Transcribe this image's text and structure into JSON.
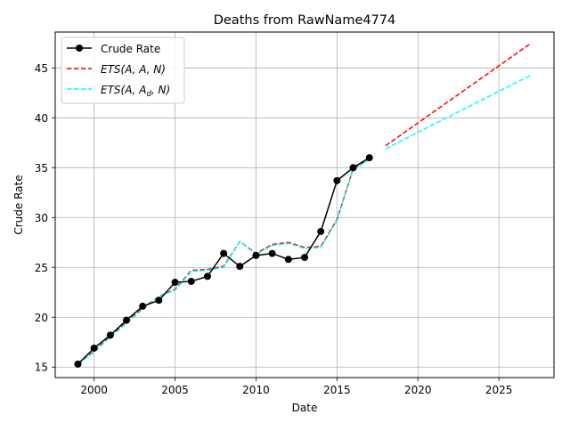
{
  "chart_data": {
    "type": "line",
    "title": "Deaths from RawName4774",
    "xlabel": "Date",
    "ylabel": "Crude Rate",
    "xlim": [
      1997.6,
      2028.4
    ],
    "ylim": [
      13.95,
      48.6
    ],
    "grid": true,
    "legend_position": "upper-left",
    "x_ticks": [
      2000,
      2005,
      2010,
      2015,
      2020,
      2025
    ],
    "y_ticks": [
      15,
      20,
      25,
      30,
      35,
      40,
      45
    ],
    "series": [
      {
        "name": "Crude Rate",
        "style": "solid-marker",
        "color": "#000000",
        "x": [
          1999,
          2000,
          2001,
          2002,
          2003,
          2004,
          2005,
          2006,
          2007,
          2008,
          2009,
          2010,
          2011,
          2012,
          2013,
          2014,
          2015,
          2016,
          2017
        ],
        "y": [
          15.3,
          16.9,
          18.2,
          19.7,
          21.1,
          21.7,
          23.5,
          23.6,
          24.1,
          26.4,
          25.1,
          26.2,
          26.4,
          25.8,
          26.0,
          28.6,
          33.7,
          35.0,
          36.0
        ]
      },
      {
        "name": "ETS(A,A,N)",
        "legend_label": {
          "prefix": "ETS(A, A, N)",
          "subscript": ""
        },
        "style": "dashed",
        "color": "#ff0000",
        "x": [
          1999,
          2000,
          2001,
          2002,
          2003,
          2004,
          2005,
          2006,
          2007,
          2008,
          2009,
          2010,
          2011,
          2012,
          2013,
          2014,
          2015,
          2016,
          2017
        ],
        "y": [
          15.3,
          16.6,
          18.1,
          19.5,
          20.9,
          22.1,
          22.8,
          24.7,
          24.8,
          25.1,
          27.6,
          26.4,
          27.3,
          27.5,
          27.0,
          27.1,
          29.8,
          34.9,
          35.9
        ]
      },
      {
        "name": "ETS(A,Ad,N)",
        "style": "dashed",
        "color": "#00ffff",
        "x": [
          1999,
          2000,
          2001,
          2002,
          2003,
          2004,
          2005,
          2006,
          2007,
          2008,
          2009,
          2010,
          2011,
          2012,
          2013,
          2014,
          2015,
          2016,
          2017
        ],
        "y": [
          15.3,
          16.5,
          18.0,
          19.4,
          20.8,
          22.1,
          22.7,
          24.6,
          24.7,
          25.0,
          27.6,
          26.3,
          27.2,
          27.4,
          26.9,
          27.0,
          29.7,
          34.8,
          35.8
        ]
      },
      {
        "name": "ETS(A,A,N) forecast",
        "style": "dashed",
        "color": "#ff0000",
        "x": [
          2018,
          2027
        ],
        "y": [
          37.2,
          47.5
        ]
      },
      {
        "name": "ETS(A,Ad,N) forecast",
        "style": "dashed",
        "color": "#00ffff",
        "x": [
          2018,
          2027
        ],
        "y": [
          36.9,
          44.3
        ]
      }
    ],
    "legend": [
      {
        "label": "Crude Rate",
        "color": "#000000",
        "style": "solid-marker"
      },
      {
        "label_main": "ETS(A, A, N)",
        "color": "#ff0000",
        "style": "dashed"
      },
      {
        "label_main": "ETS(A, A",
        "label_sub": "d",
        "label_tail": ", N)",
        "color": "#00ffff",
        "style": "dashed"
      }
    ]
  }
}
